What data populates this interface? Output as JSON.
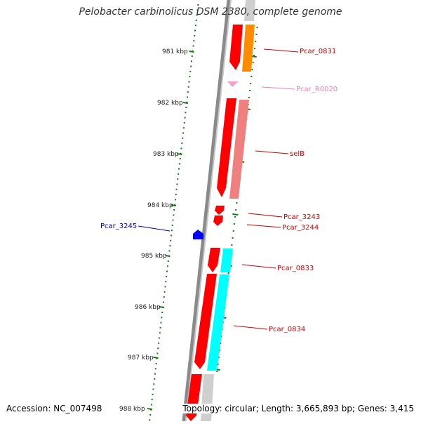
{
  "title": "Pelobacter carbinolicus DSM 2380, complete genome",
  "accession": "Accession: NC_007498",
  "topology": "Topology: circular; Length: 3,665,893 bp; Genes: 3,415",
  "colors": {
    "red": "#ff0000",
    "orange": "#ff8c00",
    "pink": "#f4a0c8",
    "salmon": "#f08080",
    "cyan": "#00ffff",
    "blue": "#0000ff",
    "green": "#1a7a1a",
    "label_red": "#cc0000",
    "label_pink": "#f080b0",
    "label_blue": "#0000aa"
  },
  "kbp_ticks": [
    {
      "label": "981 kbp"
    },
    {
      "label": "982 kbp"
    },
    {
      "label": "983 kbp"
    },
    {
      "label": "984 kbp"
    },
    {
      "label": "985 kbp"
    },
    {
      "label": "986 kbp"
    },
    {
      "label": "987 kbp"
    },
    {
      "label": "988 kbp"
    }
  ],
  "genes": [
    {
      "label": "Pcar_0831",
      "type": "protein"
    },
    {
      "label": "Pcar_R0020",
      "type": "rna"
    },
    {
      "label": "selB",
      "type": "protein"
    },
    {
      "label": "Pcar_3243",
      "type": "protein"
    },
    {
      "label": "Pcar_3244",
      "type": "protein"
    },
    {
      "label": "Pcar_3245",
      "type": "protein"
    },
    {
      "label": "Pcar_0833",
      "type": "protein"
    },
    {
      "label": "Pcar_0834",
      "type": "protein"
    }
  ]
}
